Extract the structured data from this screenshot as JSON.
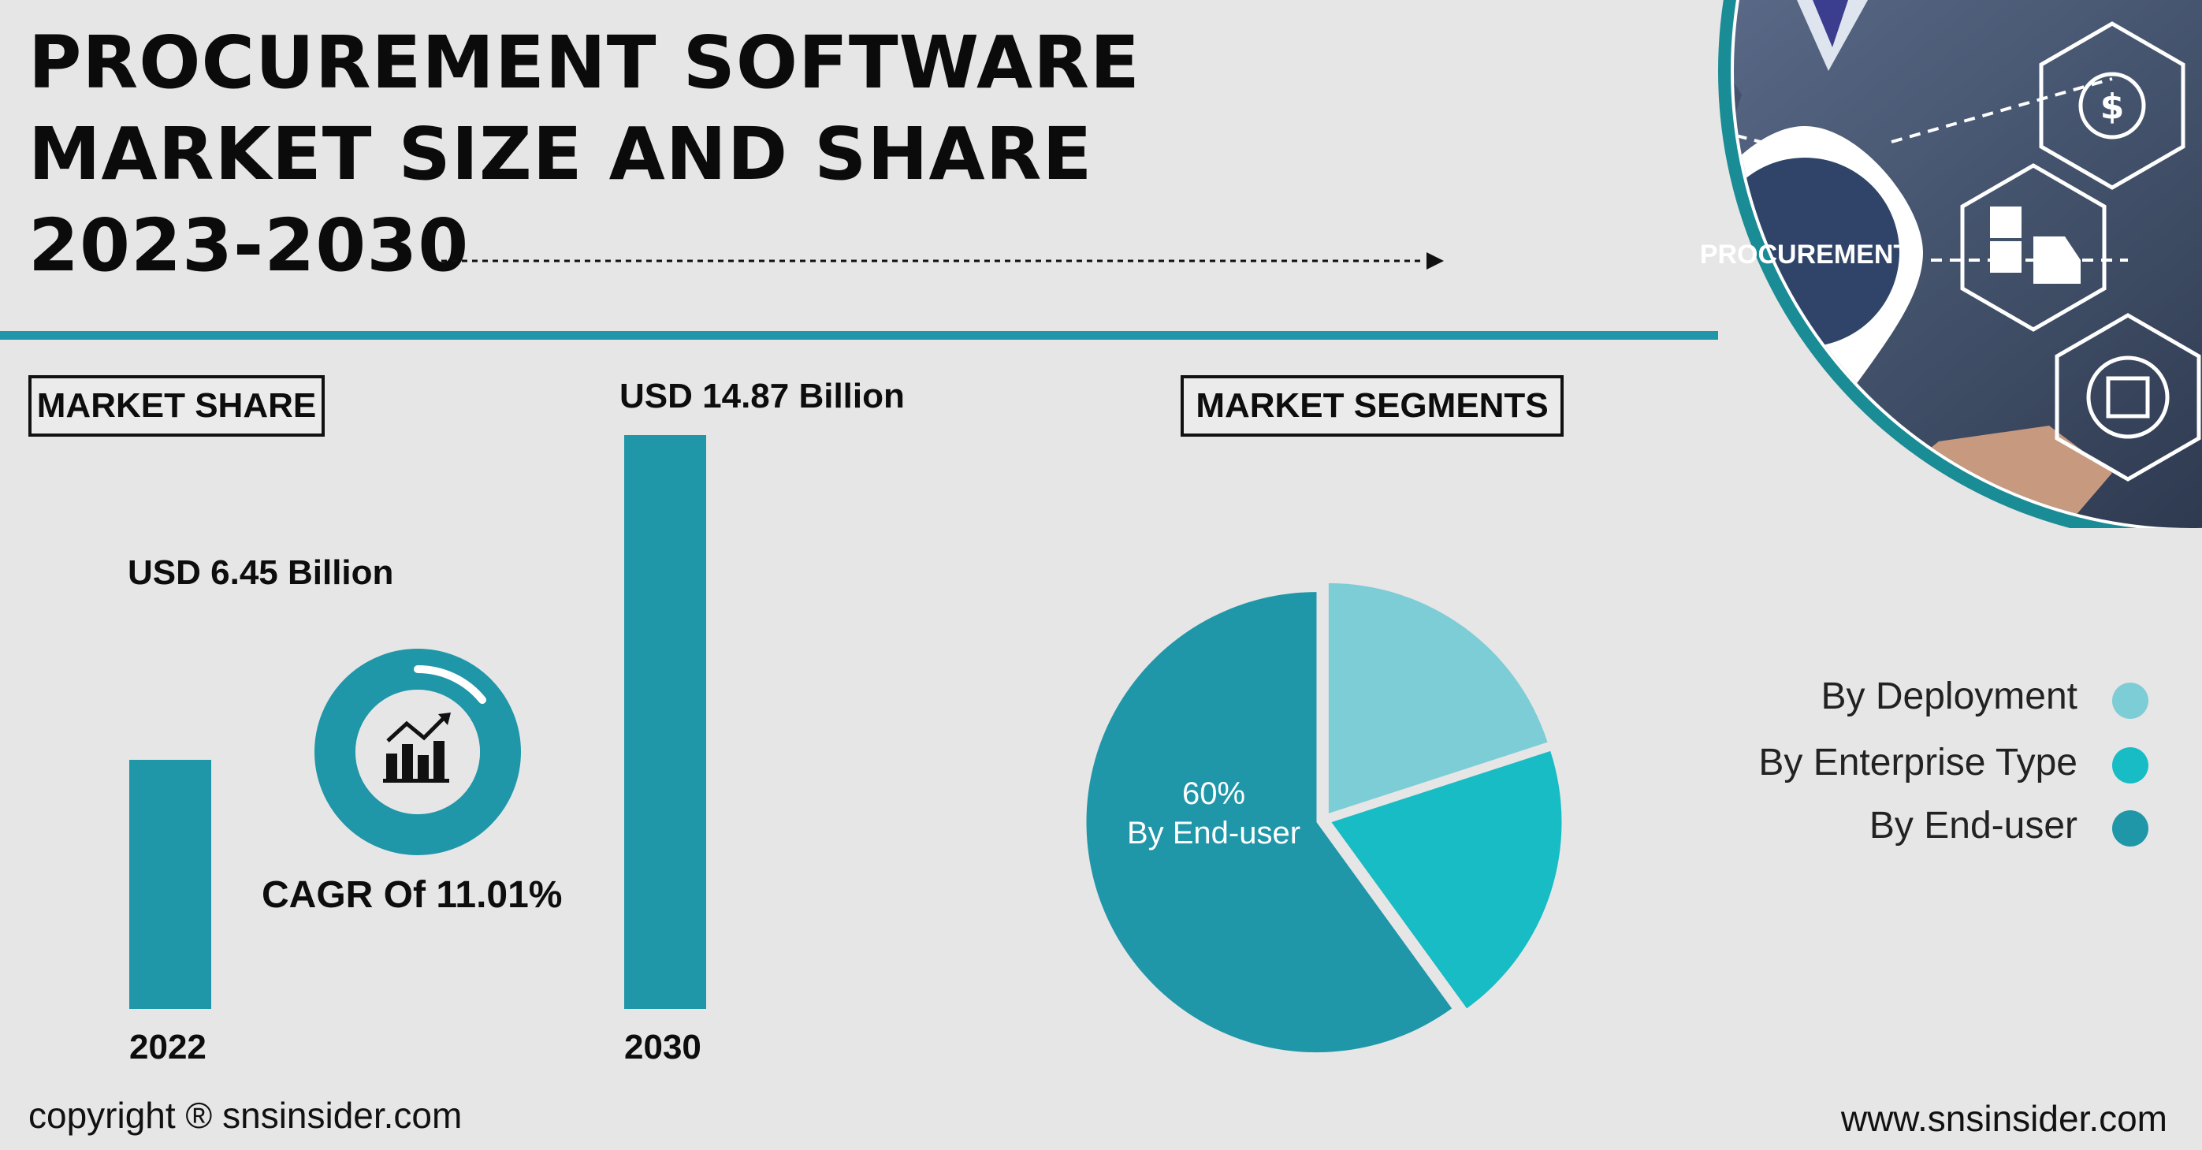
{
  "header": {
    "title_lines": [
      "PROCUREMENT SOFTWARE",
      "MARKET SIZE AND SHARE",
      "2023-2030"
    ]
  },
  "market_share": {
    "label": "MARKET SHARE",
    "bar_2022_value": "USD 6.45 Billion",
    "bar_2030_value": "USD 14.87 Billion",
    "year_2022": "2022",
    "year_2030": "2030",
    "cagr": "CAGR Of 11.01%"
  },
  "market_segments": {
    "label": "MARKET SEGMENTS",
    "pie_value": "60%",
    "pie_caption": "By End-user",
    "legend": [
      {
        "label": "By Deployment",
        "color": "#7dcdd6"
      },
      {
        "label": "By Enterprise Type",
        "color": "#17bcc4"
      },
      {
        "label": "By End-user",
        "color": "#1f97a9"
      }
    ]
  },
  "image_badge": {
    "text": "PROCUREMENT"
  },
  "footer": {
    "copyright": "copyright ® snsinsider.com",
    "website": "www.snsinsider.com"
  },
  "colors": {
    "accent": "#1f97a9",
    "background": "#e6e6e6"
  },
  "chart_data": [
    {
      "type": "bar",
      "categories": [
        "2022",
        "2030"
      ],
      "values": [
        6.45,
        14.87
      ],
      "ylabel": "",
      "xlabel": "",
      "data_labels": [
        "USD 6.45 Billion",
        "USD 14.87 Billion"
      ]
    },
    {
      "type": "pie",
      "categories": [
        "By Deployment",
        "By Enterprise Type",
        "By End-user"
      ],
      "values": [
        20,
        20,
        60
      ],
      "data_labels": [
        "",
        "",
        "60%"
      ]
    }
  ]
}
